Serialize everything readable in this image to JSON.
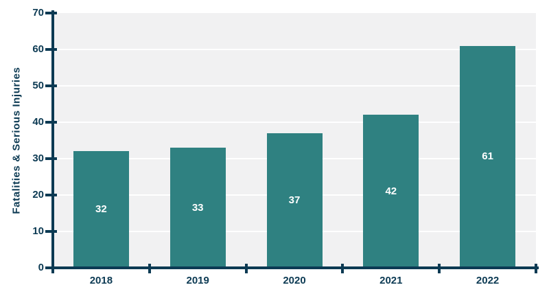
{
  "chart_data": {
    "type": "bar",
    "categories": [
      "2018",
      "2019",
      "2020",
      "2021",
      "2022"
    ],
    "values": [
      32,
      33,
      37,
      42,
      61
    ],
    "bar_labels": [
      "32",
      "33",
      "37",
      "42",
      "61"
    ],
    "title": "",
    "xlabel": "",
    "ylabel": "Fatalities & Serious Injuries",
    "ylim": [
      0,
      70
    ],
    "yticks": [
      0,
      10,
      20,
      30,
      40,
      50,
      60,
      70
    ],
    "ytick_labels": [
      "0",
      "10",
      "20",
      "30",
      "40",
      "50",
      "60",
      "70"
    ],
    "grid": true,
    "legend_position": "none",
    "colors": {
      "bar": "#2F8181",
      "axis": "#0C3A53",
      "tick_label": "#0C3A53",
      "plot_background": "#F1F1F2",
      "gridline": "#FFFFFF",
      "bar_label": "#FFFFFF",
      "page_background": "#FFFFFF"
    }
  }
}
